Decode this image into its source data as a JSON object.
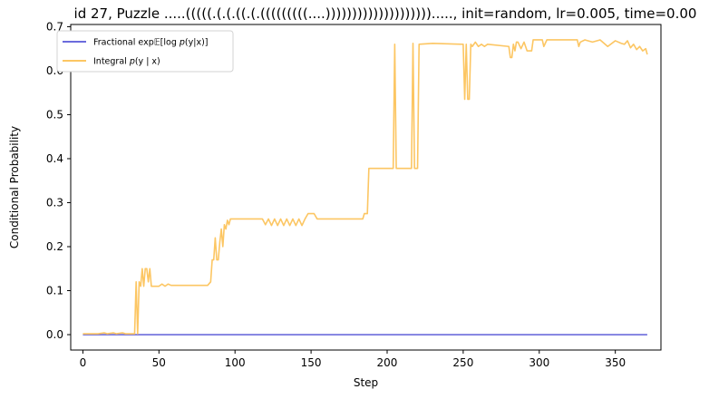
{
  "chart_data": {
    "type": "line",
    "title": "id 27, Puzzle .....(((((.(.(.((.(.(((((((((....)))))))))))))))))))).....,  init=random, lr=0.005, time=0.00",
    "xlabel": "Step",
    "ylabel": "Conditional Probability",
    "xlim": [
      -8,
      380
    ],
    "ylim": [
      -0.035,
      0.705
    ],
    "xticks": [
      0,
      50,
      100,
      150,
      200,
      250,
      300,
      350
    ],
    "yticks": [
      0.0,
      0.1,
      0.2,
      0.3,
      0.4,
      0.5,
      0.6,
      0.7
    ],
    "ytick_labels": [
      "0.0",
      "0.1",
      "0.2",
      "0.3",
      "0.4",
      "0.5",
      "0.6",
      "0.7"
    ],
    "grid": false,
    "legend_position": "top-left",
    "series": [
      {
        "name": "Fractional exp𝔼[log p(y|x)]",
        "legend": {
          "base": "Fractional exp",
          "bb": "𝔼",
          "rest": "[log ",
          "ital": "p",
          "tail": "(y|x)]"
        },
        "color": "#6b6bdc",
        "points": [
          [
            0,
            0.0
          ],
          [
            371,
            0.0
          ]
        ]
      },
      {
        "name": "Integral p(y | x)",
        "legend": {
          "base": "Integral ",
          "ital": "p",
          "tail": "(y | x)"
        },
        "color": "#fcc663",
        "points": [
          [
            0,
            0.002
          ],
          [
            10,
            0.002
          ],
          [
            14,
            0.004
          ],
          [
            16,
            0.002
          ],
          [
            20,
            0.004
          ],
          [
            22,
            0.002
          ],
          [
            26,
            0.004
          ],
          [
            28,
            0.002
          ],
          [
            34,
            0.002
          ],
          [
            35,
            0.12
          ],
          [
            36,
            0.002
          ],
          [
            37,
            0.12
          ],
          [
            38,
            0.11
          ],
          [
            39,
            0.15
          ],
          [
            40,
            0.11
          ],
          [
            41,
            0.15
          ],
          [
            42,
            0.15
          ],
          [
            43,
            0.12
          ],
          [
            44,
            0.15
          ],
          [
            45,
            0.11
          ],
          [
            50,
            0.11
          ],
          [
            52,
            0.115
          ],
          [
            54,
            0.11
          ],
          [
            56,
            0.115
          ],
          [
            58,
            0.112
          ],
          [
            82,
            0.112
          ],
          [
            84,
            0.12
          ],
          [
            85,
            0.17
          ],
          [
            86,
            0.17
          ],
          [
            87,
            0.22
          ],
          [
            88,
            0.17
          ],
          [
            89,
            0.17
          ],
          [
            90,
            0.21
          ],
          [
            91,
            0.24
          ],
          [
            92,
            0.2
          ],
          [
            93,
            0.25
          ],
          [
            94,
            0.24
          ],
          [
            95,
            0.26
          ],
          [
            96,
            0.25
          ],
          [
            97,
            0.263
          ],
          [
            118,
            0.263
          ],
          [
            120,
            0.25
          ],
          [
            122,
            0.263
          ],
          [
            124,
            0.248
          ],
          [
            126,
            0.263
          ],
          [
            128,
            0.248
          ],
          [
            130,
            0.263
          ],
          [
            132,
            0.248
          ],
          [
            134,
            0.263
          ],
          [
            136,
            0.248
          ],
          [
            138,
            0.263
          ],
          [
            140,
            0.248
          ],
          [
            142,
            0.263
          ],
          [
            144,
            0.248
          ],
          [
            146,
            0.263
          ],
          [
            148,
            0.275
          ],
          [
            152,
            0.275
          ],
          [
            154,
            0.263
          ],
          [
            184,
            0.263
          ],
          [
            185,
            0.275
          ],
          [
            187,
            0.275
          ],
          [
            188,
            0.378
          ],
          [
            204,
            0.378
          ],
          [
            205,
            0.66
          ],
          [
            206,
            0.378
          ],
          [
            216,
            0.378
          ],
          [
            217,
            0.662
          ],
          [
            218,
            0.378
          ],
          [
            220,
            0.378
          ],
          [
            221,
            0.66
          ],
          [
            230,
            0.662
          ],
          [
            250,
            0.66
          ],
          [
            251,
            0.535
          ],
          [
            252,
            0.66
          ],
          [
            253,
            0.535
          ],
          [
            254,
            0.535
          ],
          [
            255,
            0.66
          ],
          [
            256,
            0.655
          ],
          [
            258,
            0.665
          ],
          [
            260,
            0.655
          ],
          [
            262,
            0.66
          ],
          [
            264,
            0.655
          ],
          [
            266,
            0.66
          ],
          [
            280,
            0.655
          ],
          [
            281,
            0.63
          ],
          [
            282,
            0.63
          ],
          [
            283,
            0.66
          ],
          [
            284,
            0.645
          ],
          [
            285,
            0.665
          ],
          [
            286,
            0.665
          ],
          [
            288,
            0.65
          ],
          [
            290,
            0.665
          ],
          [
            292,
            0.645
          ],
          [
            295,
            0.645
          ],
          [
            296,
            0.67
          ],
          [
            302,
            0.67
          ],
          [
            303,
            0.655
          ],
          [
            305,
            0.67
          ],
          [
            325,
            0.67
          ],
          [
            326,
            0.655
          ],
          [
            327,
            0.665
          ],
          [
            330,
            0.67
          ],
          [
            335,
            0.665
          ],
          [
            340,
            0.67
          ],
          [
            345,
            0.655
          ],
          [
            350,
            0.668
          ],
          [
            354,
            0.662
          ],
          [
            356,
            0.66
          ],
          [
            358,
            0.668
          ],
          [
            360,
            0.652
          ],
          [
            362,
            0.66
          ],
          [
            364,
            0.648
          ],
          [
            366,
            0.655
          ],
          [
            368,
            0.645
          ],
          [
            370,
            0.65
          ],
          [
            371,
            0.637
          ]
        ]
      }
    ]
  }
}
